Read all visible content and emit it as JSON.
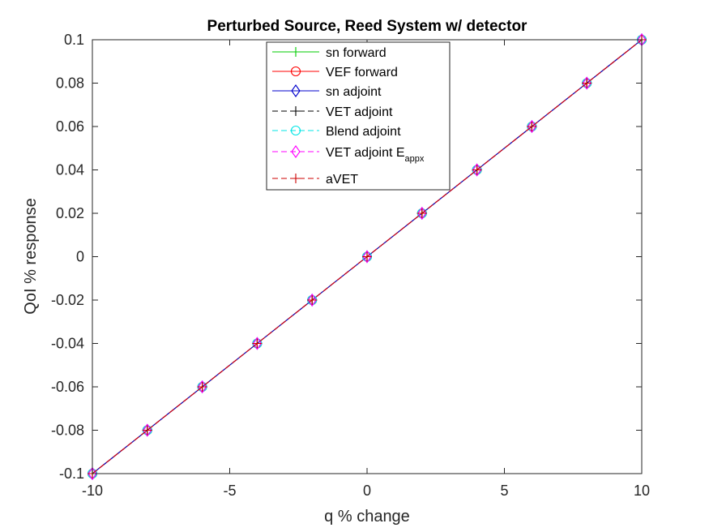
{
  "chart_data": {
    "type": "line",
    "title": "Perturbed Source, Reed System w/ detector",
    "xlabel": "q % change",
    "ylabel": "QoI % response",
    "xlim": [
      -10,
      10
    ],
    "ylim": [
      -0.1,
      0.1
    ],
    "xticks": [
      "-10",
      "-5",
      "0",
      "5",
      "10"
    ],
    "xtick_values": [
      -10,
      -5,
      0,
      5,
      10
    ],
    "yticks": [
      "-0.1",
      "-0.08",
      "-0.06",
      "-0.04",
      "-0.02",
      "0",
      "0.02",
      "0.04",
      "0.06",
      "0.08",
      "0.1"
    ],
    "ytick_values": [
      -0.1,
      -0.08,
      -0.06,
      -0.04,
      -0.02,
      0,
      0.02,
      0.04,
      0.06,
      0.08,
      0.1
    ],
    "grid": false,
    "legend_position": "top-center",
    "x": [
      -10,
      -8,
      -6,
      -4,
      -2,
      0,
      2,
      4,
      6,
      8,
      10
    ],
    "series": [
      {
        "name": "sn forward",
        "color": "#00cc00",
        "marker": "plus",
        "dashed": false,
        "values": [
          -0.1,
          -0.08,
          -0.06,
          -0.04,
          -0.02,
          0,
          0.02,
          0.04,
          0.06,
          0.08,
          0.1
        ]
      },
      {
        "name": "VEF forward",
        "color": "#ff0000",
        "marker": "circle",
        "dashed": false,
        "values": [
          -0.1,
          -0.08,
          -0.06,
          -0.04,
          -0.02,
          0,
          0.02,
          0.04,
          0.06,
          0.08,
          0.1
        ]
      },
      {
        "name": "sn adjoint",
        "color": "#0000cc",
        "marker": "diamond",
        "dashed": false,
        "values": [
          -0.1,
          -0.08,
          -0.06,
          -0.04,
          -0.02,
          0,
          0.02,
          0.04,
          0.06,
          0.08,
          0.1
        ]
      },
      {
        "name": "VET adjoint",
        "color": "#000000",
        "marker": "plus",
        "dashed": true,
        "values": [
          -0.1,
          -0.08,
          -0.06,
          -0.04,
          -0.02,
          0,
          0.02,
          0.04,
          0.06,
          0.08,
          0.1
        ]
      },
      {
        "name": "Blend adjoint",
        "color": "#00e5e5",
        "marker": "circle",
        "dashed": true,
        "values": [
          -0.1,
          -0.08,
          -0.06,
          -0.04,
          -0.02,
          0,
          0.02,
          0.04,
          0.06,
          0.08,
          0.1
        ]
      },
      {
        "name": "VET adjoint E",
        "name_subscript": "appx",
        "color": "#ff00ff",
        "marker": "diamond",
        "dashed": true,
        "values": [
          -0.1,
          -0.08,
          -0.06,
          -0.04,
          -0.02,
          0,
          0.02,
          0.04,
          0.06,
          0.08,
          0.1
        ]
      },
      {
        "name": "aVET",
        "color": "#cc0000",
        "marker": "plus",
        "dashed": true,
        "values": [
          -0.1,
          -0.08,
          -0.06,
          -0.04,
          -0.02,
          0,
          0.02,
          0.04,
          0.06,
          0.08,
          0.1
        ]
      }
    ]
  }
}
